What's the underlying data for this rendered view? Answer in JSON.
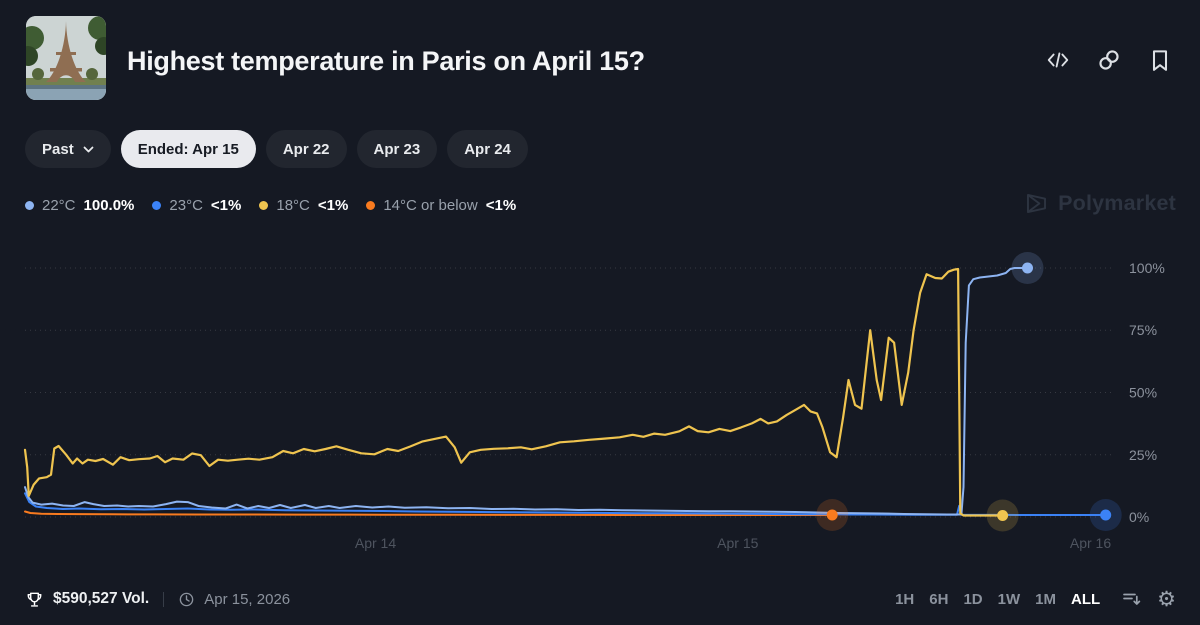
{
  "header": {
    "title": "Highest temperature in Paris on April 15?",
    "icons": [
      "embed-code-icon",
      "copy-link-icon",
      "bookmark-icon"
    ]
  },
  "filters": {
    "past_label": "Past",
    "tabs": [
      {
        "label": "Ended: Apr 15",
        "active": true
      },
      {
        "label": "Apr 22",
        "active": false
      },
      {
        "label": "Apr 23",
        "active": false
      },
      {
        "label": "Apr 24",
        "active": false
      }
    ]
  },
  "legend": [
    {
      "label": "22°C",
      "value": "100.0%",
      "color": "#8db4f2"
    },
    {
      "label": "23°C",
      "value": "<1%",
      "color": "#3b82f6"
    },
    {
      "label": "18°C",
      "value": "<1%",
      "color": "#efc44f"
    },
    {
      "label": "14°C or below",
      "value": "<1%",
      "color": "#f97b1f"
    }
  ],
  "watermark": {
    "label": "Polymarket"
  },
  "chart_data": {
    "type": "line",
    "title": "Outcome probability over time",
    "ylabel": "%",
    "y_axis": {
      "ticks": [
        0,
        25,
        50,
        75,
        100
      ],
      "range": [
        0,
        100
      ],
      "unit": "%",
      "grid": "dotted",
      "labels_side": "right"
    },
    "x_axis": {
      "ticks": [
        {
          "label": "Apr 14",
          "t": 32.3
        },
        {
          "label": "Apr 15",
          "t": 65.7
        },
        {
          "label": "Apr 16",
          "t": 98.2
        }
      ]
    },
    "series": [
      {
        "name": "14°C or below",
        "color": "#f97b1f",
        "width": 2,
        "end": {
          "t": 74.4,
          "pct": 0.8
        },
        "points": [
          [
            0,
            2.2
          ],
          [
            0.5,
            1.6
          ],
          [
            1.5,
            1.3
          ],
          [
            3,
            1.2
          ],
          [
            5,
            1.15
          ],
          [
            8,
            1.1
          ],
          [
            12,
            1.05
          ],
          [
            16,
            1
          ],
          [
            20,
            1
          ],
          [
            25,
            0.95
          ],
          [
            30,
            0.95
          ],
          [
            35,
            0.9
          ],
          [
            40,
            0.9
          ],
          [
            45,
            0.85
          ],
          [
            50,
            0.85
          ],
          [
            55,
            0.8
          ],
          [
            60,
            0.8
          ],
          [
            65,
            0.8
          ],
          [
            68,
            0.8
          ],
          [
            71,
            0.8
          ],
          [
            74.4,
            0.8
          ]
        ]
      },
      {
        "name": "23°C",
        "color": "#3b82f6",
        "width": 2,
        "end": {
          "t": 99.6,
          "pct": 0.8
        },
        "points": [
          [
            0,
            9.5
          ],
          [
            0.4,
            6
          ],
          [
            1,
            4.2
          ],
          [
            2,
            3.6
          ],
          [
            3.5,
            3.2
          ],
          [
            5,
            3.4
          ],
          [
            7,
            3.1
          ],
          [
            9,
            3.2
          ],
          [
            11,
            3
          ],
          [
            13,
            3.2
          ],
          [
            15,
            3.4
          ],
          [
            17,
            3
          ],
          [
            19,
            2.9
          ],
          [
            21,
            3
          ],
          [
            24,
            2.7
          ],
          [
            27,
            2.6
          ],
          [
            30,
            2.5
          ],
          [
            33,
            2.4
          ],
          [
            36,
            2.2
          ],
          [
            39,
            2.1
          ],
          [
            42,
            2
          ],
          [
            45,
            1.9
          ],
          [
            48,
            1.8
          ],
          [
            51,
            1.7
          ],
          [
            54,
            1.6
          ],
          [
            57,
            1.5
          ],
          [
            60,
            1.5
          ],
          [
            63,
            1.4
          ],
          [
            66,
            1.3
          ],
          [
            69,
            1.2
          ],
          [
            72,
            1.1
          ],
          [
            74.4,
            1.1
          ],
          [
            76,
            1
          ],
          [
            78,
            1
          ],
          [
            80,
            0.95
          ],
          [
            82,
            0.9
          ],
          [
            84,
            0.9
          ],
          [
            85.9,
            0.9
          ],
          [
            86.1,
            4.5
          ],
          [
            86.3,
            0.9
          ],
          [
            88,
            0.85
          ],
          [
            90,
            0.85
          ],
          [
            92,
            0.8
          ],
          [
            94,
            0.8
          ],
          [
            96,
            0.8
          ],
          [
            98,
            0.8
          ],
          [
            99.6,
            0.8
          ]
        ]
      },
      {
        "name": "22°C",
        "color": "#8db4f2",
        "width": 2,
        "end": {
          "t": 92.4,
          "pct": 100
        },
        "points": [
          [
            0,
            12
          ],
          [
            0.3,
            8
          ],
          [
            0.7,
            5.8
          ],
          [
            1.5,
            5
          ],
          [
            2.5,
            5.4
          ],
          [
            3.5,
            4.6
          ],
          [
            4.5,
            4.4
          ],
          [
            5.5,
            6
          ],
          [
            6.3,
            5.2
          ],
          [
            7.3,
            4.4
          ],
          [
            8.5,
            4.6
          ],
          [
            9.5,
            4.2
          ],
          [
            10.5,
            4.4
          ],
          [
            11.8,
            4.2
          ],
          [
            13,
            5.2
          ],
          [
            14,
            6.2
          ],
          [
            15,
            6
          ],
          [
            16,
            4.4
          ],
          [
            17.2,
            3.8
          ],
          [
            18.5,
            3.4
          ],
          [
            19.5,
            5
          ],
          [
            20.5,
            3.4
          ],
          [
            21.5,
            4.4
          ],
          [
            22.5,
            3.6
          ],
          [
            23.5,
            4.8
          ],
          [
            24.5,
            3.6
          ],
          [
            25.8,
            4.8
          ],
          [
            26.8,
            3.6
          ],
          [
            28,
            4.4
          ],
          [
            29,
            3.6
          ],
          [
            30.5,
            4.4
          ],
          [
            32,
            3.8
          ],
          [
            33.5,
            4.2
          ],
          [
            35,
            3.7
          ],
          [
            37,
            3.9
          ],
          [
            39,
            3.5
          ],
          [
            41,
            3.6
          ],
          [
            43,
            3.2
          ],
          [
            45,
            3.3
          ],
          [
            47,
            3
          ],
          [
            49,
            3.1
          ],
          [
            51,
            2.8
          ],
          [
            53,
            2.9
          ],
          [
            55,
            2.7
          ],
          [
            57,
            2.6
          ],
          [
            59,
            2.5
          ],
          [
            61,
            2.4
          ],
          [
            63,
            2.3
          ],
          [
            65,
            2.3
          ],
          [
            67,
            2.2
          ],
          [
            69,
            2.1
          ],
          [
            71,
            2
          ],
          [
            73,
            1.8
          ],
          [
            75,
            1.6
          ],
          [
            77,
            1.5
          ],
          [
            79,
            1.4
          ],
          [
            81,
            1.2
          ],
          [
            83,
            1.1
          ],
          [
            85,
            1
          ],
          [
            86.3,
            1
          ],
          [
            86.5,
            12
          ],
          [
            86.7,
            70
          ],
          [
            87,
            93
          ],
          [
            87.4,
            95.5
          ],
          [
            88,
            96.2
          ],
          [
            88.8,
            96.6
          ],
          [
            89.6,
            97
          ],
          [
            90.4,
            98
          ],
          [
            90.8,
            99.6
          ],
          [
            91.2,
            100
          ],
          [
            92.4,
            100
          ]
        ]
      },
      {
        "name": "18°C",
        "color": "#efc44f",
        "width": 2.2,
        "end": {
          "t": 90.1,
          "pct": 0.6
        },
        "points": [
          [
            0,
            27
          ],
          [
            0.2,
            20
          ],
          [
            0.35,
            8.5
          ],
          [
            0.8,
            13
          ],
          [
            1.3,
            15.5
          ],
          [
            2,
            16
          ],
          [
            2.4,
            17
          ],
          [
            2.7,
            27.5
          ],
          [
            3.1,
            28.5
          ],
          [
            3.8,
            25
          ],
          [
            4.4,
            21.5
          ],
          [
            4.8,
            23.5
          ],
          [
            5.3,
            21.5
          ],
          [
            5.8,
            23
          ],
          [
            6.5,
            22.5
          ],
          [
            7.2,
            23.3
          ],
          [
            8.1,
            21
          ],
          [
            8.8,
            24
          ],
          [
            9.6,
            22.8
          ],
          [
            10.5,
            23.2
          ],
          [
            11.5,
            23.5
          ],
          [
            12.2,
            24.5
          ],
          [
            12.9,
            22
          ],
          [
            13.6,
            23.5
          ],
          [
            14.6,
            23
          ],
          [
            15.4,
            25.5
          ],
          [
            16.2,
            24.8
          ],
          [
            17,
            20.5
          ],
          [
            17.8,
            23
          ],
          [
            18.7,
            22.6
          ],
          [
            19.6,
            23
          ],
          [
            20.6,
            23.4
          ],
          [
            21.6,
            23
          ],
          [
            22.8,
            24
          ],
          [
            23.8,
            26.5
          ],
          [
            24.7,
            25.6
          ],
          [
            25.7,
            27.3
          ],
          [
            26.7,
            26.4
          ],
          [
            27.7,
            27.3
          ],
          [
            28.7,
            28.4
          ],
          [
            29.8,
            27
          ],
          [
            31,
            25.6
          ],
          [
            32.2,
            25.2
          ],
          [
            33.4,
            27.3
          ],
          [
            34.4,
            26.5
          ],
          [
            35.5,
            28.3
          ],
          [
            36.6,
            30.3
          ],
          [
            37.7,
            31.3
          ],
          [
            38.8,
            32.3
          ],
          [
            39.6,
            28
          ],
          [
            40.2,
            21.8
          ],
          [
            41,
            26
          ],
          [
            42,
            27
          ],
          [
            43.2,
            27.4
          ],
          [
            44.5,
            27.6
          ],
          [
            45.7,
            28
          ],
          [
            46.7,
            27.2
          ],
          [
            48,
            28.4
          ],
          [
            49.3,
            30
          ],
          [
            50.6,
            30.4
          ],
          [
            52,
            31
          ],
          [
            53.4,
            31.5
          ],
          [
            54.8,
            32
          ],
          [
            56,
            33
          ],
          [
            57,
            32.2
          ],
          [
            58,
            33.5
          ],
          [
            59,
            33
          ],
          [
            60.3,
            34.4
          ],
          [
            61.2,
            36.4
          ],
          [
            62,
            34.5
          ],
          [
            63,
            34
          ],
          [
            64,
            35.4
          ],
          [
            65,
            34.5
          ],
          [
            66,
            36
          ],
          [
            67,
            37.6
          ],
          [
            67.8,
            39.4
          ],
          [
            68.5,
            37.6
          ],
          [
            69.3,
            38.4
          ],
          [
            70.2,
            41
          ],
          [
            71,
            43
          ],
          [
            71.8,
            45
          ],
          [
            72.4,
            42.4
          ],
          [
            73,
            41.6
          ],
          [
            73.5,
            36
          ],
          [
            74.2,
            26
          ],
          [
            74.8,
            24
          ],
          [
            75.4,
            40
          ],
          [
            75.9,
            55
          ],
          [
            76.5,
            45
          ],
          [
            77.1,
            43.5
          ],
          [
            77.9,
            75
          ],
          [
            78.5,
            55
          ],
          [
            78.9,
            47
          ],
          [
            79.6,
            72
          ],
          [
            80.1,
            70
          ],
          [
            80.8,
            45
          ],
          [
            81.4,
            58
          ],
          [
            81.9,
            75
          ],
          [
            82.5,
            90
          ],
          [
            83.1,
            97.5
          ],
          [
            83.9,
            96
          ],
          [
            84.5,
            95.8
          ],
          [
            85.1,
            98.5
          ],
          [
            85.6,
            99.3
          ],
          [
            86,
            99.6
          ],
          [
            86.2,
            1.5
          ],
          [
            86.5,
            0.6
          ],
          [
            88,
            0.6
          ],
          [
            90.1,
            0.6
          ]
        ]
      }
    ]
  },
  "footer": {
    "volume": "$590,527 Vol.",
    "date": "Apr 15, 2026",
    "ranges": [
      "1H",
      "6H",
      "1D",
      "1W",
      "1M",
      "ALL"
    ],
    "active_range": "ALL",
    "icons": [
      "trophy-icon",
      "clock-icon",
      "sort-icon",
      "gear-icon"
    ]
  }
}
